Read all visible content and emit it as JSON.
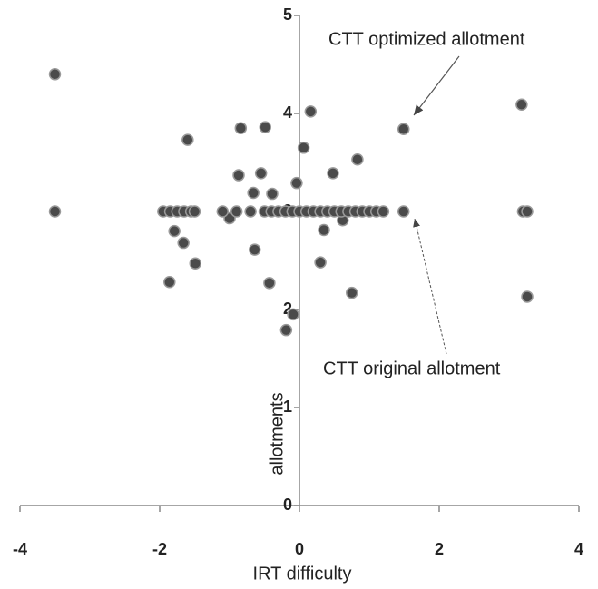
{
  "chart_data": {
    "type": "scatter",
    "x_label": "IRT difficulty",
    "y_label": "allotments",
    "annotations": [
      "CTT optimized allotment",
      "CTT original allotment"
    ],
    "xlim": [
      -4,
      4
    ],
    "ylim": [
      0,
      5
    ],
    "xticks": [
      -4,
      -2,
      0,
      2,
      4
    ],
    "yticks": [
      0,
      1,
      2,
      3,
      4,
      5
    ],
    "color": "#4a4a4a",
    "x": [
      -3.5,
      -3.5,
      -1.6,
      -1.86,
      -1.79,
      -1.66,
      -1.49,
      -1.95,
      -1.85,
      -1.75,
      -1.65,
      -1.55,
      -1.5,
      -0.84,
      -0.87,
      -0.55,
      -0.66,
      -0.39,
      -1.0,
      -0.64,
      -0.43,
      -0.49,
      0.16,
      0.06,
      -0.04,
      0.48,
      0.83,
      -0.09,
      -0.19,
      0.3,
      0.35,
      0.62,
      0.75,
      1.49,
      1.49,
      3.18,
      3.26,
      3.2,
      3.26,
      -1.1,
      -0.9,
      -0.7,
      -0.5,
      -0.4,
      -0.3,
      -0.2,
      -0.1,
      0,
      0.1,
      0.2,
      0.3,
      0.4,
      0.5,
      0.6,
      0.7,
      0.8,
      0.9,
      1.0,
      1.1,
      1.2
    ],
    "values": [
      4.4,
      3.0,
      3.73,
      2.28,
      2.8,
      2.68,
      2.47,
      3.0,
      3.0,
      3.0,
      3.0,
      3.0,
      3.0,
      3.85,
      3.37,
      3.39,
      3.19,
      3.18,
      2.93,
      2.61,
      2.27,
      3.86,
      4.02,
      3.65,
      3.29,
      3.39,
      3.53,
      1.95,
      1.79,
      2.48,
      2.81,
      2.91,
      2.17,
      3.84,
      3.0,
      4.09,
      2.13,
      3.0,
      3.0,
      3.0,
      3.0,
      3.0,
      3.0,
      3.0,
      3.0,
      3.0,
      3.0,
      3.0,
      3.0,
      3.0,
      3.0,
      3.0,
      3.0,
      3.0,
      3.0,
      3.0,
      3.0,
      3.0,
      3.0,
      3.0
    ]
  }
}
